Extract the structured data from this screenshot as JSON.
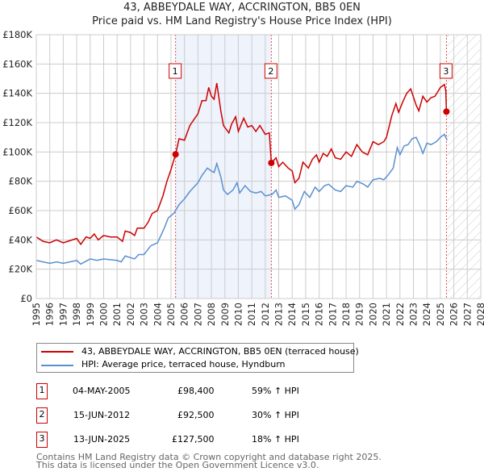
{
  "title": "43, ABBEYDALE WAY, ACCRINGTON, BB5 0EN",
  "subtitle": "Price paid vs. HM Land Registry's House Price Index (HPI)",
  "chart_data": {
    "type": "line",
    "xlim": [
      1995,
      2028
    ],
    "ylim": [
      0,
      180000
    ],
    "x_ticks": [
      "1995",
      "1996",
      "1997",
      "1998",
      "1999",
      "2000",
      "2001",
      "2002",
      "2003",
      "2004",
      "2005",
      "2006",
      "2007",
      "2008",
      "2009",
      "2010",
      "2011",
      "2012",
      "2013",
      "2014",
      "2015",
      "2016",
      "2017",
      "2018",
      "2019",
      "2020",
      "2021",
      "2022",
      "2023",
      "2024",
      "2025",
      "2026",
      "2027",
      "2028"
    ],
    "y_ticks": [
      {
        "v": 0,
        "l": "£0"
      },
      {
        "v": 20000,
        "l": "£20K"
      },
      {
        "v": 40000,
        "l": "£40K"
      },
      {
        "v": 60000,
        "l": "£60K"
      },
      {
        "v": 80000,
        "l": "£80K"
      },
      {
        "v": 100000,
        "l": "£100K"
      },
      {
        "v": 120000,
        "l": "£120K"
      },
      {
        "v": 140000,
        "l": "£140K"
      },
      {
        "v": 160000,
        "l": "£160K"
      },
      {
        "v": 180000,
        "l": "£180K"
      }
    ],
    "grid": true,
    "shaded_range": [
      2005.34,
      2012.45
    ],
    "forecast_hatch_from": 2025.45,
    "series": [
      {
        "name": "43, ABBEYDALE WAY, ACCRINGTON, BB5 0EN (terraced house)",
        "color": "#cc0000",
        "points": [
          [
            1995,
            42
          ],
          [
            1995.5,
            39
          ],
          [
            1996,
            38
          ],
          [
            1996.5,
            40
          ],
          [
            1997,
            38
          ],
          [
            1997.5,
            39.5
          ],
          [
            1998,
            41
          ],
          [
            1998.3,
            37
          ],
          [
            1998.7,
            42
          ],
          [
            1999,
            41
          ],
          [
            1999.3,
            44
          ],
          [
            1999.6,
            40
          ],
          [
            2000,
            43
          ],
          [
            2000.5,
            42
          ],
          [
            2001,
            42
          ],
          [
            2001.4,
            39
          ],
          [
            2001.6,
            46
          ],
          [
            2002,
            45
          ],
          [
            2002.3,
            43
          ],
          [
            2002.5,
            48
          ],
          [
            2003,
            48
          ],
          [
            2003.3,
            52
          ],
          [
            2003.6,
            58
          ],
          [
            2004,
            60
          ],
          [
            2004.4,
            70
          ],
          [
            2004.7,
            80
          ],
          [
            2005,
            88
          ],
          [
            2005.34,
            98.4
          ],
          [
            2005.6,
            109
          ],
          [
            2006,
            108
          ],
          [
            2006.4,
            118
          ],
          [
            2007,
            126
          ],
          [
            2007.3,
            135
          ],
          [
            2007.6,
            135
          ],
          [
            2007.8,
            144
          ],
          [
            2008,
            138
          ],
          [
            2008.2,
            136
          ],
          [
            2008.4,
            147
          ],
          [
            2008.7,
            128
          ],
          [
            2008.9,
            118
          ],
          [
            2009.3,
            113
          ],
          [
            2009.5,
            119
          ],
          [
            2009.8,
            124
          ],
          [
            2010,
            114
          ],
          [
            2010.4,
            123
          ],
          [
            2010.7,
            117
          ],
          [
            2011,
            118
          ],
          [
            2011.3,
            114
          ],
          [
            2011.6,
            118
          ],
          [
            2012,
            112
          ],
          [
            2012.3,
            113
          ],
          [
            2012.45,
            92.5
          ],
          [
            2012.8,
            96
          ],
          [
            2013,
            90
          ],
          [
            2013.3,
            93
          ],
          [
            2013.7,
            89
          ],
          [
            2014,
            87
          ],
          [
            2014.2,
            79
          ],
          [
            2014.5,
            82
          ],
          [
            2014.8,
            93
          ],
          [
            2015.2,
            89
          ],
          [
            2015.5,
            95
          ],
          [
            2015.8,
            98
          ],
          [
            2016,
            93
          ],
          [
            2016.3,
            99
          ],
          [
            2016.6,
            97
          ],
          [
            2016.9,
            102
          ],
          [
            2017.2,
            96
          ],
          [
            2017.6,
            95
          ],
          [
            2018,
            100
          ],
          [
            2018.4,
            97
          ],
          [
            2018.8,
            105
          ],
          [
            2019.2,
            100
          ],
          [
            2019.6,
            98
          ],
          [
            2020,
            107
          ],
          [
            2020.4,
            105
          ],
          [
            2020.8,
            107
          ],
          [
            2021,
            110
          ],
          [
            2021.4,
            125
          ],
          [
            2021.7,
            133
          ],
          [
            2021.9,
            127
          ],
          [
            2022.2,
            134
          ],
          [
            2022.5,
            140
          ],
          [
            2022.8,
            143
          ],
          [
            2023.2,
            132
          ],
          [
            2023.4,
            128
          ],
          [
            2023.7,
            138
          ],
          [
            2024,
            134
          ],
          [
            2024.3,
            137
          ],
          [
            2024.6,
            138
          ],
          [
            2025,
            144
          ],
          [
            2025.3,
            146
          ],
          [
            2025.4,
            142
          ],
          [
            2025.45,
            127.5
          ]
        ]
      },
      {
        "name": "HPI: Average price, terraced house, Hyndburn",
        "color": "#5b8fd0",
        "points": [
          [
            1995,
            26
          ],
          [
            1995.5,
            25
          ],
          [
            1996,
            24
          ],
          [
            1996.5,
            25
          ],
          [
            1997,
            24
          ],
          [
            1997.5,
            25
          ],
          [
            1998,
            26
          ],
          [
            1998.3,
            23.5
          ],
          [
            1999,
            27
          ],
          [
            1999.5,
            26
          ],
          [
            2000,
            27
          ],
          [
            2001,
            26
          ],
          [
            2001.3,
            25
          ],
          [
            2001.6,
            29
          ],
          [
            2002.3,
            27
          ],
          [
            2002.6,
            30
          ],
          [
            2003,
            30
          ],
          [
            2003.5,
            36
          ],
          [
            2004,
            38
          ],
          [
            2004.5,
            48
          ],
          [
            2004.8,
            55
          ],
          [
            2005.2,
            58
          ],
          [
            2005.6,
            64
          ],
          [
            2006,
            68
          ],
          [
            2006.4,
            73
          ],
          [
            2007,
            79
          ],
          [
            2007.3,
            84
          ],
          [
            2007.7,
            89
          ],
          [
            2008,
            87
          ],
          [
            2008.2,
            86
          ],
          [
            2008.4,
            92
          ],
          [
            2008.7,
            83
          ],
          [
            2008.9,
            74
          ],
          [
            2009.2,
            71
          ],
          [
            2009.6,
            74
          ],
          [
            2009.9,
            79
          ],
          [
            2010.1,
            72
          ],
          [
            2010.5,
            77
          ],
          [
            2010.9,
            73
          ],
          [
            2011.3,
            72
          ],
          [
            2011.7,
            73
          ],
          [
            2012,
            70
          ],
          [
            2012.5,
            71
          ],
          [
            2012.8,
            74
          ],
          [
            2013,
            69
          ],
          [
            2013.5,
            70
          ],
          [
            2014,
            67
          ],
          [
            2014.2,
            61
          ],
          [
            2014.5,
            64
          ],
          [
            2014.9,
            73
          ],
          [
            2015.3,
            69
          ],
          [
            2015.7,
            76
          ],
          [
            2016,
            73
          ],
          [
            2016.4,
            77
          ],
          [
            2016.7,
            78
          ],
          [
            2017.2,
            74
          ],
          [
            2017.6,
            73
          ],
          [
            2018,
            77
          ],
          [
            2018.5,
            76
          ],
          [
            2018.8,
            80
          ],
          [
            2019.3,
            78
          ],
          [
            2019.6,
            76
          ],
          [
            2020,
            81
          ],
          [
            2020.5,
            82
          ],
          [
            2020.8,
            81
          ],
          [
            2021.1,
            84
          ],
          [
            2021.5,
            89
          ],
          [
            2021.8,
            103
          ],
          [
            2022,
            98
          ],
          [
            2022.3,
            104
          ],
          [
            2022.6,
            105
          ],
          [
            2022.9,
            109
          ],
          [
            2023.2,
            110
          ],
          [
            2023.5,
            104
          ],
          [
            2023.7,
            99
          ],
          [
            2024,
            106
          ],
          [
            2024.3,
            105
          ],
          [
            2024.7,
            107
          ],
          [
            2025,
            110
          ],
          [
            2025.3,
            112
          ],
          [
            2025.5,
            108
          ]
        ]
      }
    ],
    "sales": [
      {
        "label": "1",
        "x": 2005.34,
        "y": 98400,
        "date": "04-MAY-2005",
        "price": "£98,400",
        "hpi": "59% ↑ HPI"
      },
      {
        "label": "2",
        "x": 2012.45,
        "y": 92500,
        "date": "15-JUN-2012",
        "price": "£92,500",
        "hpi": "30% ↑ HPI"
      },
      {
        "label": "3",
        "x": 2025.45,
        "y": 127500,
        "date": "13-JUN-2025",
        "price": "£127,500",
        "hpi": "18% ↑ HPI"
      }
    ]
  },
  "footer": [
    "Contains HM Land Registry data © Crown copyright and database right 2025.",
    "This data is licensed under the Open Government Licence v3.0."
  ]
}
